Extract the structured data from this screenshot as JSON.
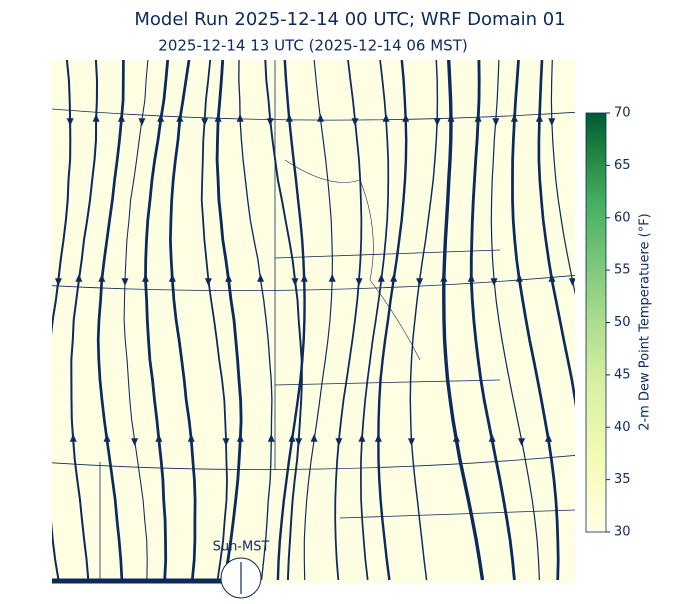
{
  "title": "Model Run 2025-12-14 00 UTC; WRF Domain 01",
  "subtitle": "2025-12-14 13 UTC  (2025-12-14 06 MST)",
  "colorbar": {
    "label": "2-m Dew Point Temperatuere (°F)",
    "lim": [
      30,
      70
    ],
    "ticks": [
      30,
      35,
      40,
      45,
      50,
      55,
      60,
      65,
      70
    ]
  },
  "timeline": {
    "label": "Sun-MST"
  }
}
